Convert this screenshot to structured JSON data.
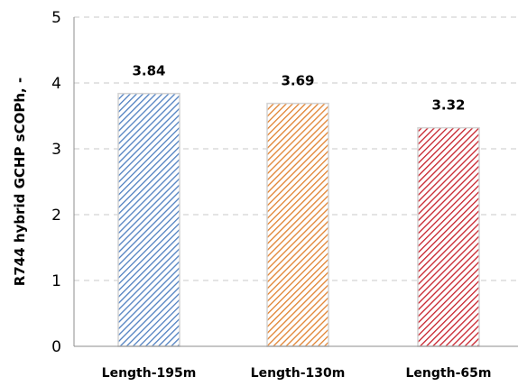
{
  "chart_data": {
    "type": "bar",
    "categories": [
      "Length-195m",
      "Length-130m",
      "Length-65m"
    ],
    "values": [
      3.84,
      3.69,
      3.32
    ],
    "data_labels": [
      "3.84",
      "3.69",
      "3.32"
    ],
    "colors": [
      "#4f7fc0",
      "#e0812f",
      "#c6202a"
    ],
    "fill_pattern": "diagonal-hatch",
    "title": "",
    "xlabel": "",
    "ylabel": "R744 hybrid GCHP sCOPh, -",
    "ylim": [
      0,
      5
    ],
    "yticks": [
      "0",
      "1",
      "2",
      "3",
      "4",
      "5"
    ],
    "grid": "horizontal-dashed",
    "legend": "none"
  }
}
